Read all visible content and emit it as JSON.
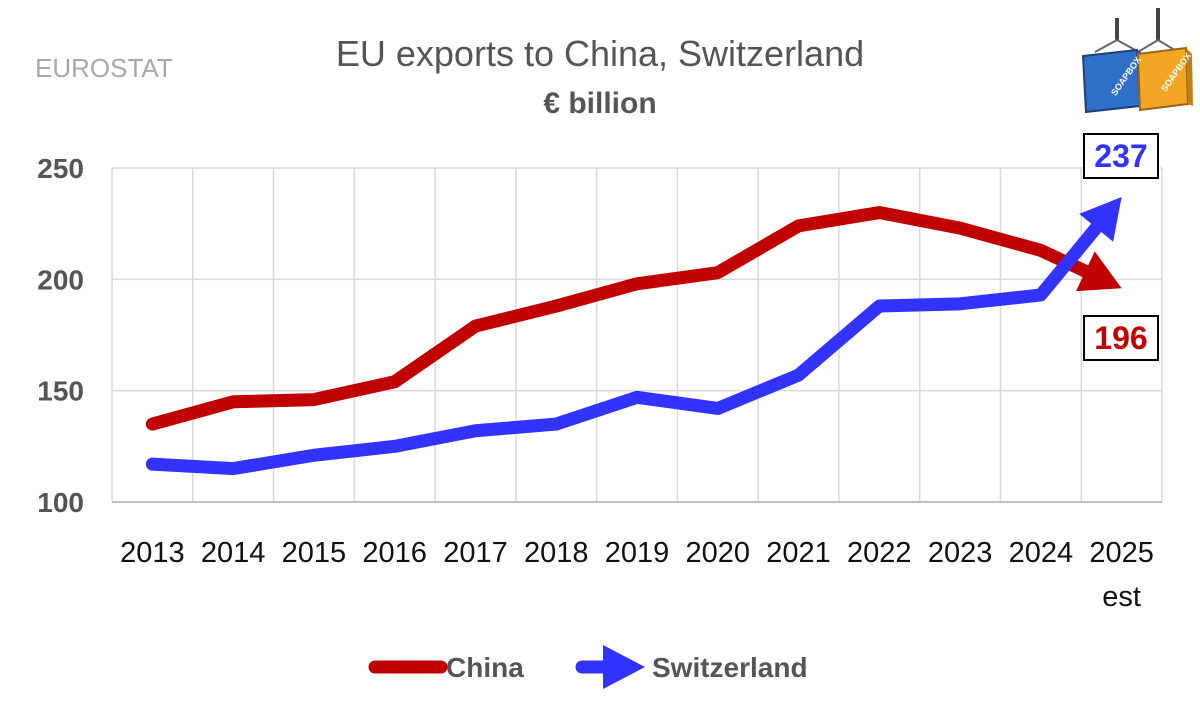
{
  "source": "EUROSTAT",
  "logo": {
    "icon": "shipping-containers-icon",
    "text": "SOAPBOX"
  },
  "colors": {
    "china": "#c00000",
    "switzerland": "#3333ff",
    "grid": "#d9d9d9",
    "axis": "#bfbfbf"
  },
  "chart_data": {
    "type": "line",
    "title": "EU exports to China, Switzerland",
    "subtitle": "€ billion",
    "xlabel": "",
    "ylabel": "",
    "categories": [
      "2013",
      "2014",
      "2015",
      "2016",
      "2017",
      "2018",
      "2019",
      "2020",
      "2021",
      "2022",
      "2023",
      "2024",
      "2025"
    ],
    "category_sublabels": {
      "12": "est"
    },
    "ylim": [
      100,
      250
    ],
    "yticks": [
      100,
      150,
      200,
      250
    ],
    "grid": true,
    "legend_position": "bottom",
    "series": [
      {
        "name": "China",
        "values": [
          135,
          145,
          146,
          154,
          179,
          188,
          198,
          203,
          224,
          230,
          223,
          213,
          196
        ],
        "end_label": "196"
      },
      {
        "name": "Switzerland",
        "values": [
          117,
          115,
          121,
          125,
          132,
          135,
          147,
          142,
          157,
          188,
          189,
          193,
          237
        ],
        "end_label": "237"
      }
    ]
  }
}
